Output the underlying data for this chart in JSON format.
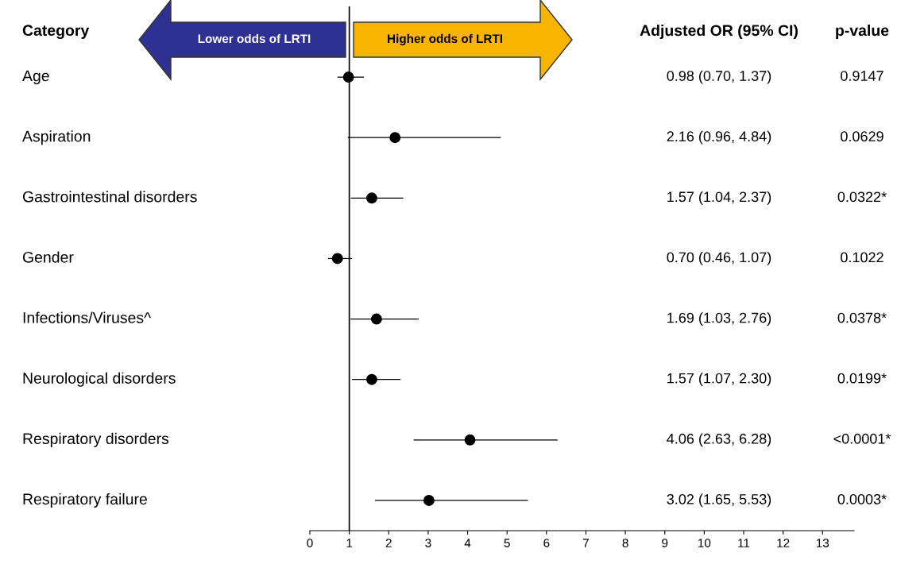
{
  "chart_data": {
    "type": "scatter",
    "orientation": "horizontal",
    "ylabel": "Category",
    "categories": [
      "Age",
      "Aspiration",
      "Gastrointestinal disorders",
      "Gender",
      "Infections/Viruses^",
      "Neurological disorders",
      "Respiratory disorders",
      "Respiratory failure"
    ],
    "values": [
      0.98,
      2.16,
      1.57,
      0.7,
      1.69,
      1.57,
      4.06,
      3.02
    ],
    "errors": [
      [
        0.7,
        1.37
      ],
      [
        0.96,
        4.84
      ],
      [
        1.04,
        2.37
      ],
      [
        0.46,
        1.07
      ],
      [
        1.03,
        2.76
      ],
      [
        1.07,
        2.3
      ],
      [
        2.63,
        6.28
      ],
      [
        1.65,
        5.53
      ]
    ],
    "annotations": [
      "Adjusted OR (95% CI)",
      "p-value",
      "Lower odds of LRTI",
      "Higher odds of LRTI",
      "0.98 (0.70, 1.37)",
      "2.16 (0.96, 4.84)",
      "1.57 (1.04, 2.37)",
      "0.70 (0.46, 1.07)",
      "1.69 (1.03, 2.76)",
      "1.57 (1.07, 2.30)",
      "4.06 (2.63, 6.28)",
      "3.02 (1.65, 5.53)",
      "0.9147",
      "0.0629",
      "0.0322*",
      "0.1022",
      "0.0378*",
      "0.0199*",
      "<0.0001*",
      "0.0003*"
    ],
    "color": "#000000",
    "marker": "circle",
    "xlim": [
      0,
      13.8
    ],
    "xticks": [
      0,
      1,
      2,
      3,
      4,
      5,
      6,
      7,
      8,
      9,
      10,
      11,
      12,
      13
    ],
    "ref_lines": [
      {
        "axis": "x",
        "value": 1,
        "label": null,
        "color": "#000000"
      }
    ],
    "grid": false
  }
}
